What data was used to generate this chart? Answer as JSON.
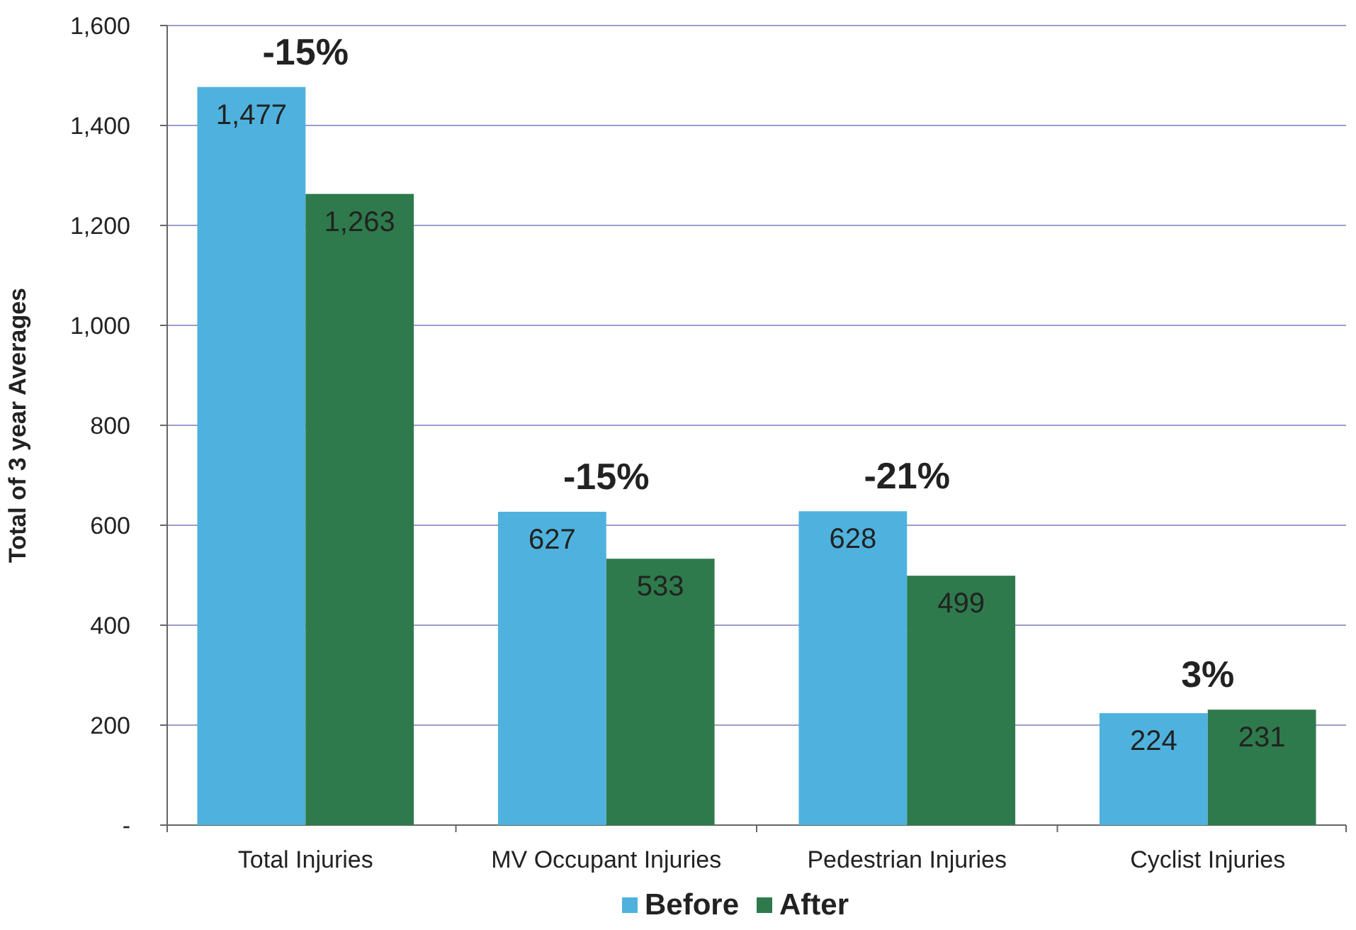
{
  "chart_data": {
    "type": "bar",
    "ylabel": "Total of 3 year Averages",
    "categories": [
      "Total Injuries",
      "MV Occupant Injuries",
      "Pedestrian Injuries",
      "Cyclist Injuries"
    ],
    "series": [
      {
        "name": "Before",
        "color": "#4fb2de",
        "values": [
          1477,
          627,
          628,
          224
        ],
        "value_labels": [
          "1,477",
          "627",
          "628",
          "224"
        ]
      },
      {
        "name": "After",
        "color": "#2e7a4c",
        "values": [
          1263,
          533,
          499,
          231
        ],
        "value_labels": [
          "1,263",
          "533",
          "499",
          "231"
        ]
      }
    ],
    "ylim": [
      0,
      1600
    ],
    "yticks": [
      {
        "value": 0,
        "label": "-"
      },
      {
        "value": 200,
        "label": "200"
      },
      {
        "value": 400,
        "label": "400"
      },
      {
        "value": 600,
        "label": "600"
      },
      {
        "value": 800,
        "label": "800"
      },
      {
        "value": 1000,
        "label": "1,000"
      },
      {
        "value": 1200,
        "label": "1,200"
      },
      {
        "value": 1400,
        "label": "1,400"
      },
      {
        "value": 1600,
        "label": "1,600"
      }
    ],
    "grid": "y",
    "legend": "bottom",
    "annotations": [
      "-15%",
      "-15%",
      "-21%",
      "3%"
    ]
  }
}
